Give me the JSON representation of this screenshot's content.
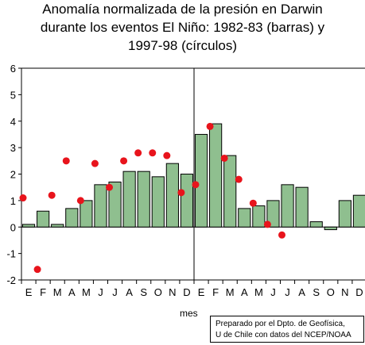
{
  "title_lines": [
    "Anomalía normalizada de la presión en Darwin",
    "durante los eventos El Niño: 1982-83 (barras) y",
    "1997-98 (círculos)"
  ],
  "credit_lines": [
    "Preparado por el Dpto. de Geofísica,",
    "U de Chile con datos del NCEP/NOAA"
  ],
  "colors": {
    "bar_fill": "#8fbf8f",
    "bar_stroke": "#000000",
    "dot": "#e8141c"
  },
  "chart_data": {
    "type": "bar",
    "title": "Anomalía normalizada de la presión en Darwin durante los eventos El Niño: 1982-83 (barras) y 1997-98 (círculos)",
    "xlabel": "mes",
    "ylabel": "",
    "ylim": [
      -2,
      6
    ],
    "yticks": [
      "-2",
      "-1",
      "0",
      "1",
      "2",
      "3",
      "4",
      "5",
      "6"
    ],
    "categories": [
      "E",
      "F",
      "M",
      "A",
      "M",
      "J",
      "J",
      "A",
      "S",
      "O",
      "N",
      "D",
      "E",
      "F",
      "M",
      "A",
      "M",
      "J",
      "J",
      "A",
      "S",
      "O",
      "N",
      "D"
    ],
    "series": [
      {
        "kind": "bar",
        "values": [
          0.1,
          0.6,
          0.1,
          0.7,
          1.0,
          1.6,
          1.7,
          2.1,
          2.1,
          1.9,
          2.4,
          2.0,
          3.5,
          3.9,
          2.7,
          0.7,
          0.8,
          1.0,
          1.6,
          1.5,
          0.2,
          -0.1,
          1.0,
          1.2
        ]
      },
      {
        "kind": "scatter",
        "values": [
          1.1,
          -1.6,
          1.2,
          2.5,
          1.0,
          2.4,
          1.5,
          2.5,
          2.8,
          2.8,
          2.7,
          1.3,
          1.6,
          3.8,
          2.6,
          1.8,
          0.9,
          0.1,
          -0.3,
          null,
          null,
          null,
          null,
          null
        ]
      }
    ],
    "grid": false,
    "divider_after_category": 12
  }
}
